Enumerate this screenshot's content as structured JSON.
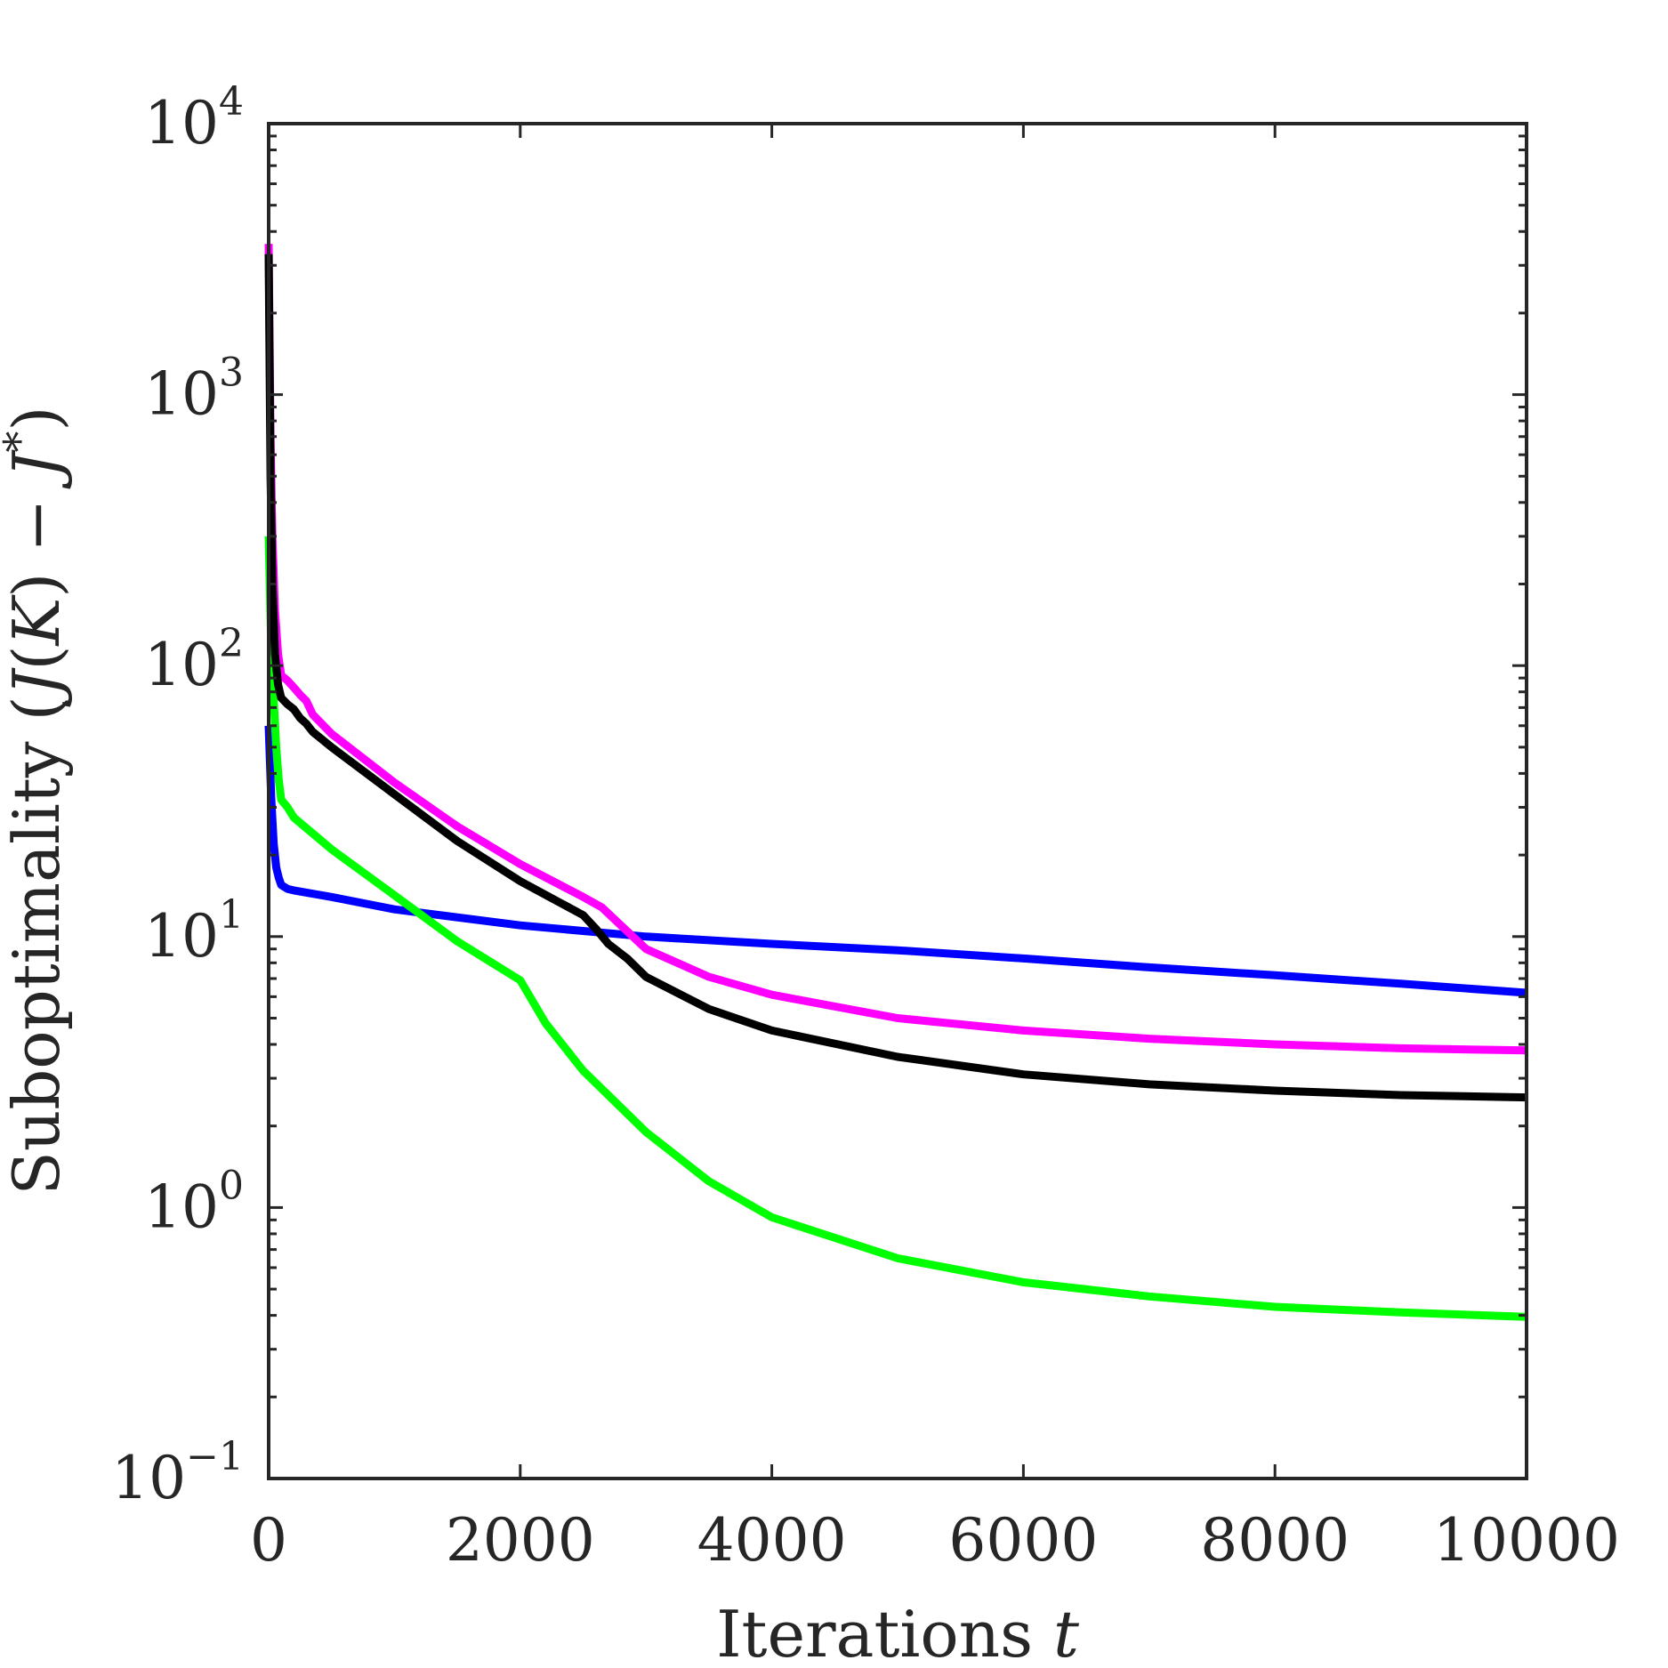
{
  "chart_data": {
    "type": "line",
    "xlabel": {
      "text": "Iterations ",
      "var": "t"
    },
    "ylabel": {
      "prefix": "Suboptimality (",
      "J1": "J",
      "open": "(",
      "K": "K",
      "close": ")",
      "minus": " − ",
      "J2": "J",
      "star": "*",
      "suffix": ")"
    },
    "x_scale": "linear",
    "y_scale": "log",
    "xlim": [
      0,
      10000
    ],
    "ylim": [
      0.1,
      10000
    ],
    "x_ticks": [
      0,
      2000,
      4000,
      6000,
      8000,
      10000
    ],
    "x_tick_labels": [
      "0",
      "2000",
      "4000",
      "6000",
      "8000",
      "10000"
    ],
    "y_ticks": [
      0.1,
      1,
      10,
      100,
      1000,
      10000
    ],
    "y_tick_labels": [
      {
        "base": "10",
        "exp": "−1"
      },
      {
        "base": "10",
        "exp": "0"
      },
      {
        "base": "10",
        "exp": "1"
      },
      {
        "base": "10",
        "exp": "2"
      },
      {
        "base": "10",
        "exp": "3"
      },
      {
        "base": "10",
        "exp": "4"
      }
    ],
    "grid": false,
    "legend": "none",
    "series": [
      {
        "color": "#0000ff",
        "x": [
          0,
          20,
          40,
          60,
          80,
          100,
          150,
          200,
          500,
          1000,
          2000,
          3000,
          4000,
          5000,
          6000,
          7000,
          8000,
          9000,
          10000
        ],
        "y": [
          60,
          33,
          22,
          18,
          16.5,
          15.5,
          15.0,
          14.8,
          14.0,
          12.6,
          11.0,
          10.0,
          9.4,
          8.9,
          8.3,
          7.7,
          7.2,
          6.7,
          6.2
        ]
      },
      {
        "color": "#00ff00",
        "x": [
          0,
          20,
          40,
          60,
          80,
          100,
          150,
          200,
          500,
          1000,
          1500,
          2000,
          2200,
          2500,
          3000,
          3500,
          4000,
          5000,
          6000,
          7000,
          8000,
          9000,
          10000
        ],
        "y": [
          300,
          120,
          75,
          50,
          38,
          32,
          30,
          27.5,
          21,
          14.2,
          9.6,
          6.9,
          4.8,
          3.2,
          1.9,
          1.25,
          0.92,
          0.65,
          0.53,
          0.47,
          0.43,
          0.41,
          0.395
        ]
      },
      {
        "color": "#ff00ff",
        "x": [
          0,
          15,
          30,
          50,
          75,
          100,
          150,
          200,
          250,
          300,
          350,
          500,
          1000,
          1500,
          2000,
          2500,
          2650,
          2800,
          3000,
          3500,
          4000,
          5000,
          6000,
          7000,
          8000,
          9000,
          10000
        ],
        "y": [
          3600,
          700,
          300,
          160,
          110,
          92,
          88,
          83,
          78,
          74,
          66,
          56,
          37,
          25.5,
          18.5,
          14.0,
          12.8,
          11.0,
          9.0,
          7.1,
          6.1,
          5.0,
          4.5,
          4.2,
          4.0,
          3.87,
          3.8
        ]
      },
      {
        "color": "#000000",
        "x": [
          0,
          15,
          30,
          50,
          75,
          100,
          150,
          200,
          250,
          300,
          350,
          500,
          1000,
          1500,
          2000,
          2500,
          2600,
          2700,
          2850,
          3000,
          3500,
          4000,
          5000,
          6000,
          7000,
          8000,
          9000,
          10000
        ],
        "y": [
          3300,
          500,
          200,
          110,
          85,
          76,
          72,
          69,
          64,
          61,
          57,
          50,
          33.5,
          22.5,
          16,
          12.0,
          10.7,
          9.4,
          8.3,
          7.1,
          5.4,
          4.5,
          3.6,
          3.1,
          2.85,
          2.7,
          2.6,
          2.55
        ]
      }
    ]
  }
}
